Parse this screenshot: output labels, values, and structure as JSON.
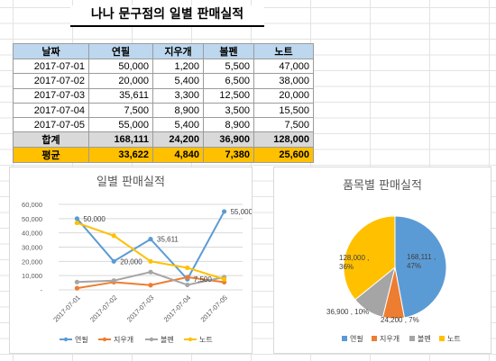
{
  "title": "나나 문구점의 일별 판매실적",
  "table": {
    "headers": [
      "날짜",
      "연필",
      "지우개",
      "볼펜",
      "노트"
    ],
    "rows": [
      [
        "2017-07-01",
        "50,000",
        "1,200",
        "5,500",
        "47,000"
      ],
      [
        "2017-07-02",
        "20,000",
        "5,400",
        "6,500",
        "38,000"
      ],
      [
        "2017-07-03",
        "35,611",
        "3,300",
        "12,500",
        "20,000"
      ],
      [
        "2017-07-04",
        "7,500",
        "8,900",
        "3,500",
        "15,500"
      ],
      [
        "2017-07-05",
        "55,000",
        "5,400",
        "8,900",
        "7,500"
      ]
    ],
    "sum": [
      "합계",
      "168,111",
      "24,200",
      "36,900",
      "128,000"
    ],
    "avg": [
      "평균",
      "33,622",
      "4,840",
      "7,380",
      "25,600"
    ]
  },
  "chart_data": [
    {
      "type": "line",
      "title": "일별 판매실적",
      "x": [
        "2017-07-01",
        "2017-07-02",
        "2017-07-03",
        "2017-07-04",
        "2017-07-05"
      ],
      "series": [
        {
          "name": "연필",
          "values": [
            50000,
            20000,
            35611,
            7500,
            55000
          ],
          "color": "#5b9bd5"
        },
        {
          "name": "지우개",
          "values": [
            1200,
            5400,
            3300,
            8900,
            5400
          ],
          "color": "#ed7d31"
        },
        {
          "name": "볼펜",
          "values": [
            5500,
            6500,
            12500,
            3500,
            8900
          ],
          "color": "#a5a5a5"
        },
        {
          "name": "노트",
          "values": [
            47000,
            38000,
            20000,
            15500,
            7500
          ],
          "color": "#ffc000"
        }
      ],
      "y_ticks": [
        "60,000",
        "50,000",
        "40,000",
        "30,000",
        "20,000",
        "10,000",
        "-"
      ],
      "ylim": [
        0,
        60000
      ],
      "data_labels": [
        {
          "series": 0,
          "index": 0,
          "text": "50,000"
        },
        {
          "series": 0,
          "index": 1,
          "text": "20,000"
        },
        {
          "series": 0,
          "index": 2,
          "text": "35,611"
        },
        {
          "series": 0,
          "index": 3,
          "text": "7,500"
        },
        {
          "series": 0,
          "index": 4,
          "text": "55,000"
        }
      ],
      "legend_position": "bottom",
      "grid": true
    },
    {
      "type": "pie",
      "title": "품목별 판매실적",
      "slices": [
        {
          "name": "연필",
          "value": 168111,
          "label": "168,111 , 47%",
          "color": "#5b9bd5"
        },
        {
          "name": "지우개",
          "value": 24200,
          "label": "24,200 , 7%",
          "color": "#ed7d31"
        },
        {
          "name": "볼펜",
          "value": 36900,
          "label": "36,900 , 10%",
          "color": "#a5a5a5"
        },
        {
          "name": "노트",
          "value": 128000,
          "label": "128,000 , 36%",
          "color": "#ffc000"
        }
      ],
      "legend_position": "bottom"
    }
  ]
}
